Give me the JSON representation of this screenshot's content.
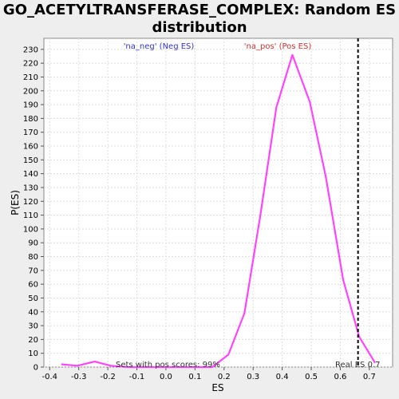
{
  "chart_data": {
    "type": "line",
    "title_line1": "GO_ACETYLTRANSFERASE_COMPLEX: Random ES",
    "title_line2": "distribution",
    "xlabel": "ES",
    "ylabel": "P(ES)",
    "xlim": [
      -0.42,
      0.78
    ],
    "ylim": [
      0,
      238
    ],
    "x_ticks": [
      -0.4,
      -0.3,
      -0.2,
      -0.1,
      0.0,
      0.1,
      0.2,
      0.3,
      0.4,
      0.5,
      0.6,
      0.7
    ],
    "x_tick_labels": [
      "-0.4",
      "-0.3",
      "-0.2",
      "-0.1",
      "0.0",
      "0.1",
      "0.2",
      "0.3",
      "0.4",
      "0.5",
      "0.6",
      "0.7"
    ],
    "y_ticks": [
      0,
      10,
      20,
      30,
      40,
      50,
      60,
      70,
      80,
      90,
      100,
      110,
      120,
      130,
      140,
      150,
      160,
      170,
      180,
      190,
      200,
      210,
      220,
      230
    ],
    "grid": true,
    "legend": {
      "neg_label": "'na_neg' (Neg ES)",
      "pos_label": "'na_pos' (Pos ES)",
      "neg_color": "#3333cc",
      "pos_color": "#cc3333"
    },
    "series": [
      {
        "color": "#ff44ff",
        "x": [
          -0.36,
          -0.305,
          -0.245,
          -0.19,
          -0.13,
          -0.07,
          -0.01,
          0.05,
          0.11,
          0.16,
          0.215,
          0.27,
          0.325,
          0.38,
          0.435,
          0.495,
          0.55,
          0.61,
          0.665,
          0.72
        ],
        "y": [
          2,
          1,
          4,
          1,
          0,
          0,
          0,
          0,
          0,
          0,
          9,
          39,
          110,
          188,
          226,
          192,
          138,
          63,
          22,
          3
        ]
      }
    ],
    "reference_line": {
      "x": 0.661,
      "color": "#000000",
      "style": "dashed"
    },
    "annotations": {
      "pos_scores": "Sets with pos scores: 99%",
      "real_es": "Real ES 0.7"
    }
  }
}
